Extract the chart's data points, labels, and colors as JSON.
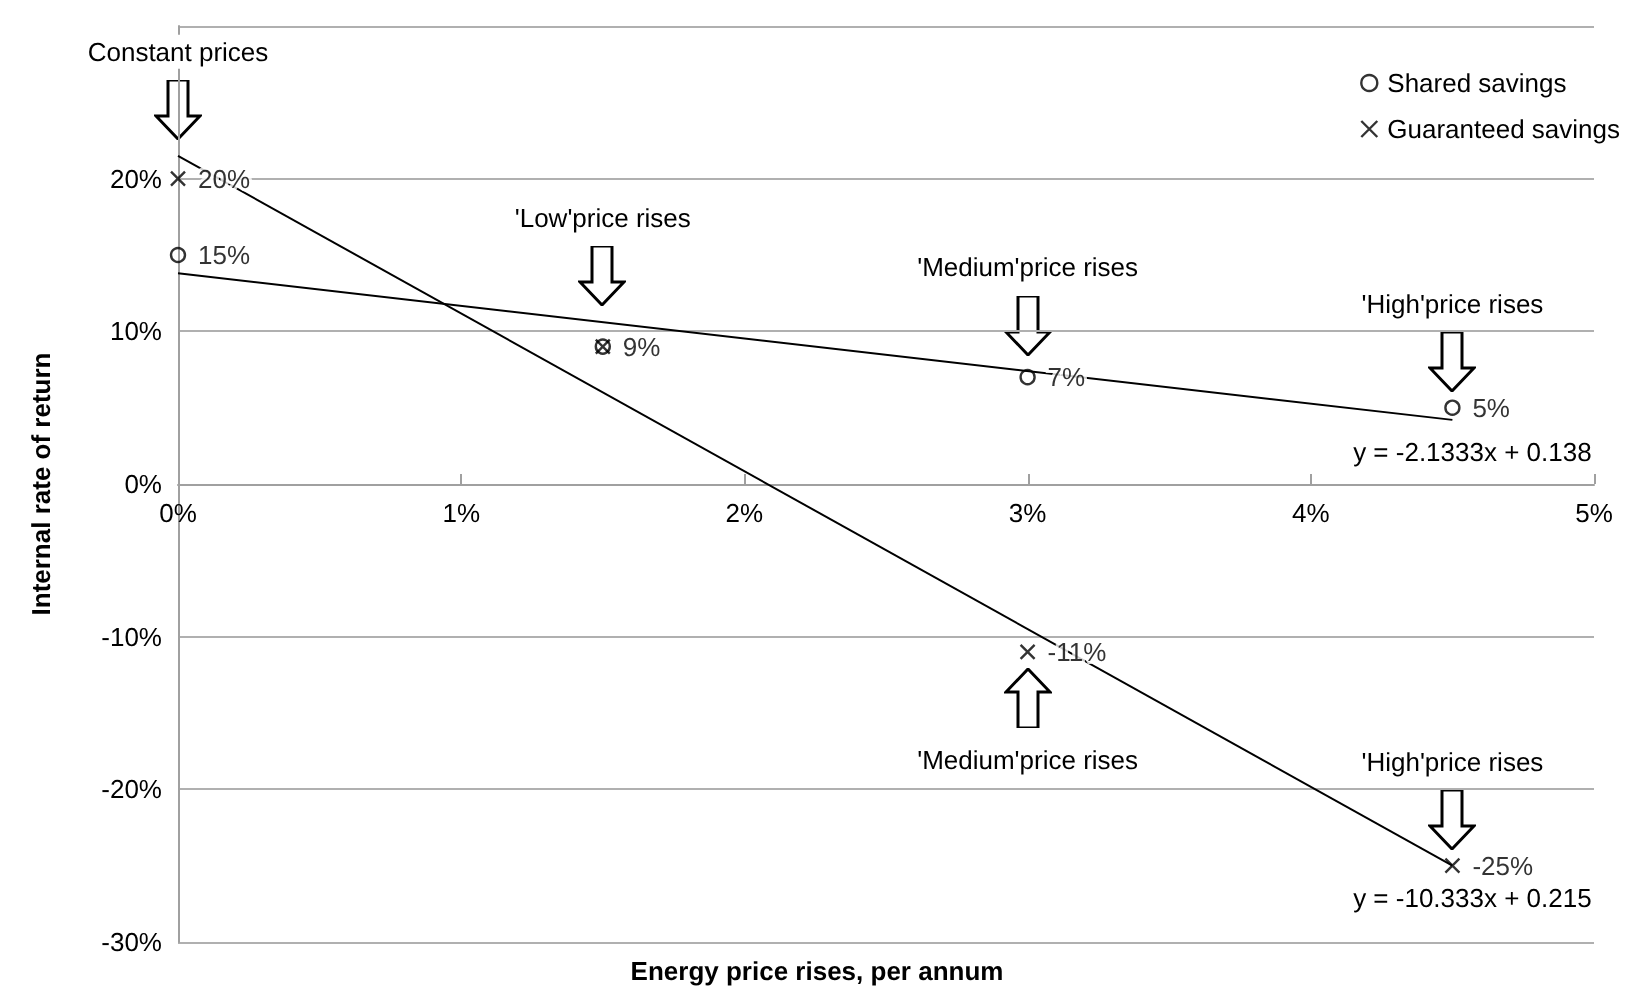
{
  "chart_data": {
    "type": "scatter",
    "xlabel": "Energy price rises, per annum",
    "ylabel": "Internal rate of return",
    "xlim": [
      0,
      5
    ],
    "xticks": [
      {
        "value": 0,
        "label": "0%"
      },
      {
        "value": 1,
        "label": "1%"
      },
      {
        "value": 2,
        "label": "2%"
      },
      {
        "value": 3,
        "label": "3%"
      },
      {
        "value": 4,
        "label": "4%"
      },
      {
        "value": 5,
        "label": "5%"
      }
    ],
    "ylim": [
      -30,
      30
    ],
    "yticks": [
      {
        "value": -30,
        "label": "-30%"
      },
      {
        "value": -20,
        "label": "-20%"
      },
      {
        "value": -10,
        "label": "-10%"
      },
      {
        "value": 0,
        "label": "0%"
      },
      {
        "value": 10,
        "label": "10%"
      },
      {
        "value": 20,
        "label": "20%"
      },
      {
        "value": 30,
        "label": null
      }
    ],
    "grid": "y",
    "legend": "top right",
    "series": [
      {
        "name": "Shared savings",
        "marker": "circle",
        "color": "#000000",
        "x": [
          0,
          1.5,
          3,
          4.5
        ],
        "values": [
          15,
          9,
          7,
          5
        ],
        "value_labels": [
          "15%",
          "9%",
          "7%",
          "5%"
        ]
      },
      {
        "name": "Guaranteed savings",
        "marker": "cross",
        "color": "#000000",
        "x": [
          0,
          1.5,
          3,
          4.5
        ],
        "values": [
          20,
          9,
          -11,
          -25
        ],
        "value_labels": [
          "20%",
          null,
          "-11%",
          "-25%"
        ]
      },
      {
        "type": "line",
        "marker": "none",
        "line_style": "solid",
        "color": "#000000",
        "x": [
          0,
          4.5
        ],
        "values": [
          13.8,
          4.2
        ]
      },
      {
        "type": "line",
        "marker": "none",
        "line_style": "solid",
        "color": "#000000",
        "x": [
          0,
          4.5
        ],
        "values": [
          21.5,
          -25
        ]
      }
    ],
    "annotations": [
      "Constant prices",
      "'Low'price rises",
      "'Medium'price rises",
      "'High'price rises",
      "'Medium'price rises",
      "'High'price rises",
      "y = -2.1333x + 0.138",
      "y = -10.333x + 0.215"
    ]
  }
}
